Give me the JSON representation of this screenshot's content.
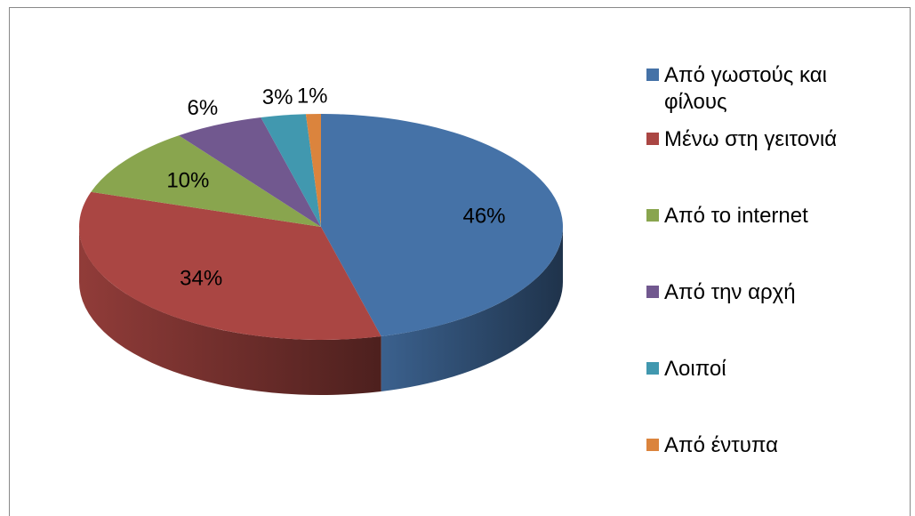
{
  "chart_data": {
    "type": "pie",
    "categories": [
      "Από γωστούς και φίλους",
      "Μένω στη γειτονιά",
      "Από το internet",
      "Από την αρχή",
      "Λοιποί",
      "Από έντυπα"
    ],
    "values": [
      46,
      34,
      10,
      6,
      3,
      1
    ],
    "value_labels": [
      "46%",
      "34%",
      "10%",
      "6%",
      "3%",
      "1%"
    ],
    "colors": [
      "#4572a7",
      "#aa4643",
      "#89a54e",
      "#71588f",
      "#4198af",
      "#db843d"
    ],
    "legend": "right"
  }
}
